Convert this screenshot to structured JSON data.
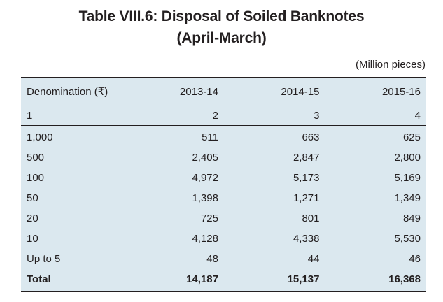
{
  "title": {
    "line1": "Table VIII.6: Disposal of Soiled Banknotes",
    "line2": "(April-March)"
  },
  "unit_note": "(Million pieces)",
  "table": {
    "columns": [
      "Denomination (₹)",
      "2013-14",
      "2014-15",
      "2015-16"
    ],
    "column_numbers": [
      "1",
      "2",
      "3",
      "4"
    ],
    "rows": [
      {
        "label": "1,000",
        "values": [
          "511",
          "663",
          "625"
        ]
      },
      {
        "label": "500",
        "values": [
          "2,405",
          "2,847",
          "2,800"
        ]
      },
      {
        "label": "100",
        "values": [
          "4,972",
          "5,173",
          "5,169"
        ]
      },
      {
        "label": "50",
        "values": [
          "1,398",
          "1,271",
          "1,349"
        ]
      },
      {
        "label": "20",
        "values": [
          "725",
          "801",
          "849"
        ]
      },
      {
        "label": "10",
        "values": [
          "4,128",
          "4,338",
          "5,530"
        ]
      },
      {
        "label": "Up to 5",
        "values": [
          "48",
          "44",
          "46"
        ]
      },
      {
        "label": "Total",
        "values": [
          "14,187",
          "15,137",
          "16,368"
        ]
      }
    ]
  },
  "colors": {
    "table_background": "#dbe8ef",
    "text": "#231f20",
    "rule": "#231f20",
    "page_background": "#ffffff"
  }
}
